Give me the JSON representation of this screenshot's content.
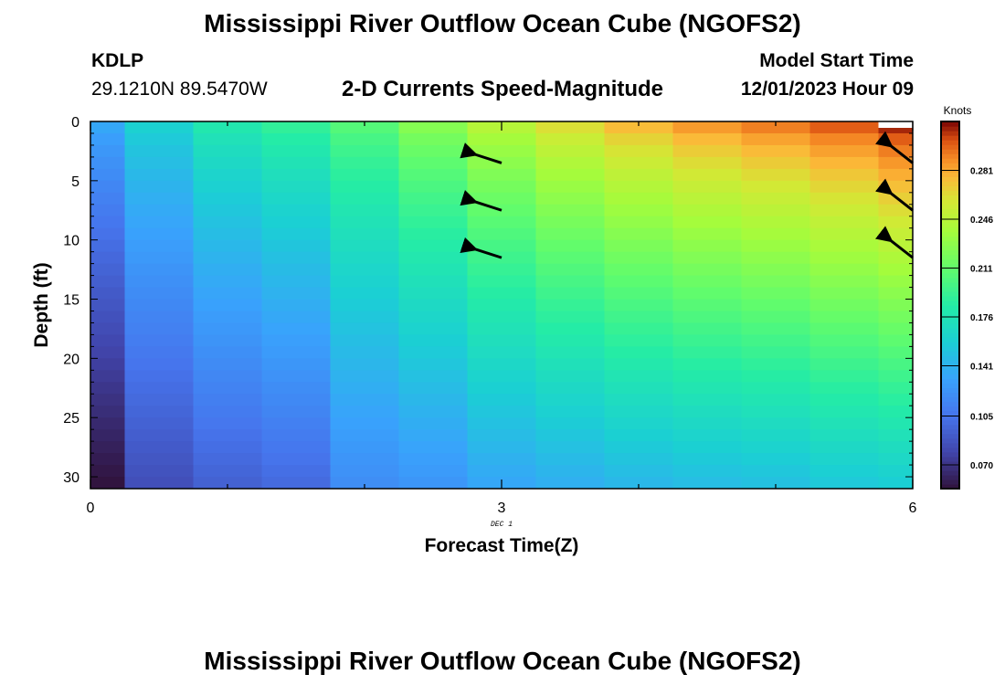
{
  "header": {
    "title": "Mississippi River Outflow Ocean Cube (NGOFS2)",
    "station_id": "KDLP",
    "station_coords": "29.1210N  89.5470W",
    "subtitle": "2-D Currents Speed-Magnitude",
    "model_start_label": "Model Start Time",
    "model_start_value": "12/01/2023 Hour 09"
  },
  "footer": {
    "title": "Mississippi River Outflow Ocean Cube (NGOFS2)"
  },
  "chart_data": {
    "type": "heatmap",
    "xlabel": "Forecast Time(Z)",
    "ylabel": "Depth (ft)",
    "date_label": "DEC 1",
    "xlim": [
      0,
      6
    ],
    "ylim": [
      31,
      0
    ],
    "x_ticks": [
      "0",
      "3",
      "6"
    ],
    "y_ticks": [
      "0",
      "5",
      "10",
      "15",
      "20",
      "25",
      "30"
    ],
    "colorbar_label": "Knots",
    "colorbar_ticks": [
      "0.070",
      "0.105",
      "0.141",
      "0.176",
      "0.211",
      "0.246",
      "0.281"
    ],
    "colorbar_range": [
      0.053,
      0.316
    ],
    "depth_levels": 31,
    "columns": [
      {
        "x": [
          0.0,
          0.25
        ],
        "top": 0.135,
        "bottom": 0.054
      },
      {
        "x": [
          0.25,
          0.75
        ],
        "top": 0.16,
        "bottom": 0.085
      },
      {
        "x": [
          0.75,
          1.25
        ],
        "top": 0.18,
        "bottom": 0.095
      },
      {
        "x": [
          1.25,
          1.75
        ],
        "top": 0.19,
        "bottom": 0.1
      },
      {
        "x": [
          1.75,
          2.25
        ],
        "top": 0.205,
        "bottom": 0.12
      },
      {
        "x": [
          2.25,
          2.75
        ],
        "top": 0.225,
        "bottom": 0.125
      },
      {
        "x": [
          2.75,
          3.25
        ],
        "top": 0.245,
        "bottom": 0.135
      },
      {
        "x": [
          3.25,
          3.75
        ],
        "top": 0.262,
        "bottom": 0.14
      },
      {
        "x": [
          3.75,
          4.25
        ],
        "top": 0.275,
        "bottom": 0.145
      },
      {
        "x": [
          4.25,
          4.75
        ],
        "top": 0.285,
        "bottom": 0.148
      },
      {
        "x": [
          4.75,
          5.25
        ],
        "top": 0.292,
        "bottom": 0.15
      },
      {
        "x": [
          5.25,
          5.75
        ],
        "top": 0.3,
        "bottom": 0.155
      },
      {
        "x": [
          5.75,
          6.0
        ],
        "top": 0.31,
        "bottom": 0.158
      }
    ],
    "vectors": [
      {
        "x": 3,
        "depth": 3.5,
        "direction": "west-northwest"
      },
      {
        "x": 3,
        "depth": 7.5,
        "direction": "west-northwest"
      },
      {
        "x": 3,
        "depth": 11.5,
        "direction": "west-northwest"
      },
      {
        "x": 6,
        "depth": 3.5,
        "direction": "northwest"
      },
      {
        "x": 6,
        "depth": 7.5,
        "direction": "northwest"
      },
      {
        "x": 6,
        "depth": 11.5,
        "direction": "northwest"
      }
    ],
    "grid": false
  }
}
